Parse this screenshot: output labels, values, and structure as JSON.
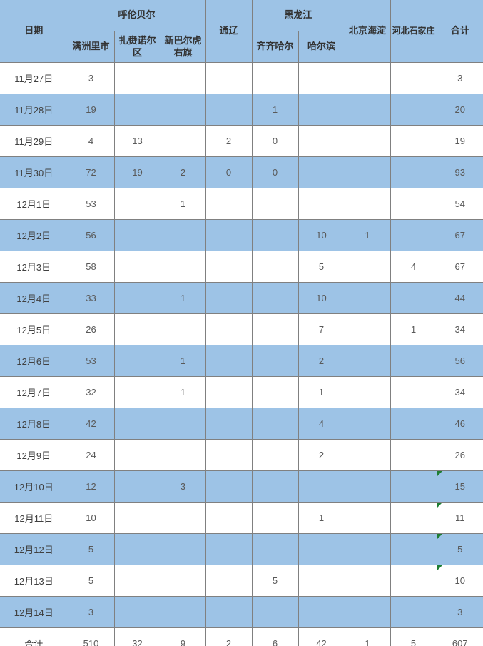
{
  "chart_data": {
    "type": "table",
    "header": {
      "date_label": "日期",
      "total_label": "合计",
      "groups": [
        {
          "label": "呼伦贝尔",
          "colspan": 3
        },
        {
          "label": "通辽",
          "rowspan": 2
        },
        {
          "label": "黑龙江",
          "colspan": 2
        },
        {
          "label": "北京海淀",
          "rowspan": 2
        },
        {
          "label": "河北石家庄",
          "rowspan": 2
        }
      ],
      "subcolumns": [
        "满洲里市",
        "扎赉诺尔区",
        "新巴尔虎右旗",
        "齐齐哈尔",
        "哈尔滨"
      ],
      "value_columns": [
        "满洲里市",
        "扎赉诺尔区",
        "新巴尔虎右旗",
        "通辽",
        "齐齐哈尔",
        "哈尔滨",
        "北京海淀",
        "河北石家庄",
        "合计"
      ]
    },
    "rows": [
      {
        "date": "11月27日",
        "values": [
          "3",
          "",
          "",
          "",
          "",
          "",
          "",
          "",
          "3"
        ]
      },
      {
        "date": "11月28日",
        "values": [
          "19",
          "",
          "",
          "",
          "1",
          "",
          "",
          "",
          "20"
        ]
      },
      {
        "date": "11月29日",
        "values": [
          "4",
          "13",
          "",
          "2",
          "0",
          "",
          "",
          "",
          "19"
        ]
      },
      {
        "date": "11月30日",
        "values": [
          "72",
          "19",
          "2",
          "0",
          "0",
          "",
          "",
          "",
          "93"
        ]
      },
      {
        "date": "12月1日",
        "values": [
          "53",
          "",
          "1",
          "",
          "",
          "",
          "",
          "",
          "54"
        ]
      },
      {
        "date": "12月2日",
        "values": [
          "56",
          "",
          "",
          "",
          "",
          "10",
          "1",
          "",
          "67"
        ]
      },
      {
        "date": "12月3日",
        "values": [
          "58",
          "",
          "",
          "",
          "",
          "5",
          "",
          "4",
          "67"
        ]
      },
      {
        "date": "12月4日",
        "values": [
          "33",
          "",
          "1",
          "",
          "",
          "10",
          "",
          "",
          "44"
        ]
      },
      {
        "date": "12月5日",
        "values": [
          "26",
          "",
          "",
          "",
          "",
          "7",
          "",
          "1",
          "34"
        ]
      },
      {
        "date": "12月6日",
        "values": [
          "53",
          "",
          "1",
          "",
          "",
          "2",
          "",
          "",
          "56"
        ]
      },
      {
        "date": "12月7日",
        "values": [
          "32",
          "",
          "1",
          "",
          "",
          "1",
          "",
          "",
          "34"
        ]
      },
      {
        "date": "12月8日",
        "values": [
          "42",
          "",
          "",
          "",
          "",
          "4",
          "",
          "",
          "46"
        ]
      },
      {
        "date": "12月9日",
        "values": [
          "24",
          "",
          "",
          "",
          "",
          "2",
          "",
          "",
          "26"
        ]
      },
      {
        "date": "12月10日",
        "values": [
          "12",
          "",
          "3",
          "",
          "",
          "",
          "",
          "",
          "15"
        ],
        "marker": true
      },
      {
        "date": "12月11日",
        "values": [
          "10",
          "",
          "",
          "",
          "",
          "1",
          "",
          "",
          "11"
        ],
        "marker": true
      },
      {
        "date": "12月12日",
        "values": [
          "5",
          "",
          "",
          "",
          "",
          "",
          "",
          "",
          "5"
        ],
        "marker": true
      },
      {
        "date": "12月13日",
        "values": [
          "5",
          "",
          "",
          "",
          "5",
          "",
          "",
          "",
          "10"
        ],
        "marker": true
      },
      {
        "date": "12月14日",
        "values": [
          "3",
          "",
          "",
          "",
          "",
          "",
          "",
          "",
          "3"
        ]
      },
      {
        "date": "合计",
        "values": [
          "510",
          "32",
          "9",
          "2",
          "6",
          "42",
          "1",
          "5",
          "607"
        ],
        "is_total": true
      }
    ]
  },
  "colors": {
    "row_blue": "#9DC3E6",
    "row_white": "#FFFFFF",
    "border_gray": "#808080",
    "text_gray": "#595959",
    "marker_green": "#1e7e34"
  }
}
